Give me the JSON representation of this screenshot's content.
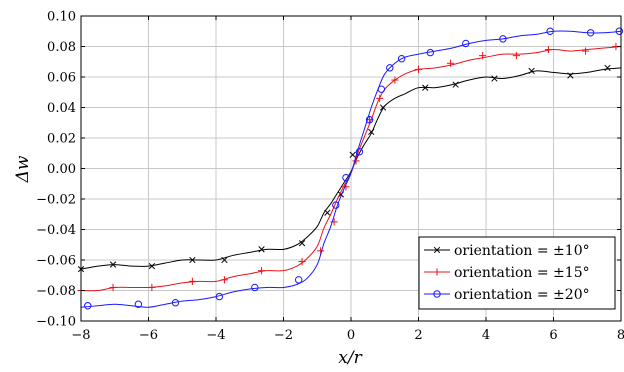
{
  "chart_data": {
    "type": "line",
    "title": "",
    "xlabel": "x/r",
    "ylabel": "Δw",
    "xlim": [
      -8,
      8
    ],
    "ylim": [
      -0.1,
      0.1
    ],
    "grid": true,
    "legend_position": "bottom-right",
    "x_ticks": [
      "−8",
      "−6",
      "−4",
      "−2",
      "0",
      "2",
      "4",
      "6",
      "8"
    ],
    "y_ticks": [
      "−0.10",
      "−0.08",
      "−0.06",
      "−0.04",
      "−0.02",
      "0.00",
      "0.02",
      "0.04",
      "0.06",
      "0.08",
      "0.10"
    ],
    "x_tick_values": [
      -8,
      -6,
      -4,
      -2,
      0,
      2,
      4,
      6,
      8
    ],
    "y_tick_values": [
      -0.1,
      -0.08,
      -0.06,
      -0.04,
      -0.02,
      0,
      0.02,
      0.04,
      0.06,
      0.08,
      0.1
    ],
    "series": [
      {
        "name": "orientation = ±10°",
        "color": "#000000",
        "marker": "cross",
        "line_x": [
          -8,
          -7.5,
          -7,
          -6.5,
          -6,
          -5.5,
          -5,
          -4.5,
          -4,
          -3.5,
          -3,
          -2.5,
          -2,
          -1.6,
          -1.3,
          -1.0,
          -0.8,
          -0.6,
          -0.4,
          -0.2,
          0,
          0.2,
          0.4,
          0.6,
          0.8,
          1.0,
          1.3,
          1.6,
          2.0,
          2.5,
          3.0,
          3.5,
          4.0,
          4.5,
          5.0,
          5.5,
          6.0,
          6.5,
          7.0,
          7.5,
          8.0
        ],
        "line_y": [
          -0.066,
          -0.064,
          -0.063,
          -0.064,
          -0.064,
          -0.062,
          -0.06,
          -0.06,
          -0.06,
          -0.057,
          -0.055,
          -0.053,
          -0.053,
          -0.05,
          -0.045,
          -0.038,
          -0.029,
          -0.023,
          -0.016,
          -0.009,
          -0.002,
          0.008,
          0.016,
          0.023,
          0.033,
          0.041,
          0.046,
          0.049,
          0.053,
          0.053,
          0.055,
          0.058,
          0.06,
          0.059,
          0.061,
          0.064,
          0.063,
          0.062,
          0.063,
          0.065,
          0.066
        ],
        "marker_x": [
          -8,
          -7.05,
          -5.9,
          -4.7,
          -3.75,
          -2.65,
          -1.45,
          -0.7,
          -0.3,
          0.05,
          0.6,
          0.95,
          2.2,
          3.1,
          4.25,
          5.35,
          6.5,
          7.6
        ],
        "marker_y": [
          -0.066,
          -0.063,
          -0.064,
          -0.06,
          -0.06,
          -0.053,
          -0.049,
          -0.029,
          -0.017,
          0.009,
          0.024,
          0.04,
          0.053,
          0.055,
          0.059,
          0.064,
          0.061,
          0.066
        ]
      },
      {
        "name": "orientation = ±15°",
        "color": "#e8141b",
        "marker": "plus",
        "line_x": [
          -8,
          -7.5,
          -7,
          -6.5,
          -6,
          -5.5,
          -5,
          -4.5,
          -4,
          -3.5,
          -3,
          -2.5,
          -2,
          -1.6,
          -1.3,
          -1.0,
          -0.8,
          -0.6,
          -0.4,
          -0.2,
          0,
          0.2,
          0.4,
          0.6,
          0.8,
          1.0,
          1.3,
          1.6,
          2.0,
          2.5,
          3.0,
          3.5,
          4.0,
          4.5,
          5.0,
          5.5,
          6.0,
          6.5,
          7.0,
          7.5,
          8.0
        ],
        "line_y": [
          -0.08,
          -0.08,
          -0.078,
          -0.078,
          -0.078,
          -0.077,
          -0.075,
          -0.074,
          -0.074,
          -0.071,
          -0.069,
          -0.067,
          -0.067,
          -0.064,
          -0.059,
          -0.051,
          -0.039,
          -0.03,
          -0.02,
          -0.011,
          -0.003,
          0.01,
          0.021,
          0.032,
          0.044,
          0.052,
          0.058,
          0.062,
          0.065,
          0.066,
          0.068,
          0.071,
          0.073,
          0.075,
          0.075,
          0.076,
          0.078,
          0.077,
          0.078,
          0.079,
          0.08
        ],
        "marker_x": [
          -8,
          -7.05,
          -5.9,
          -4.7,
          -3.75,
          -2.65,
          -1.45,
          -0.9,
          -0.5,
          -0.15,
          0.15,
          0.55,
          0.85,
          1.3,
          2.0,
          2.95,
          3.9,
          4.9,
          5.85,
          6.95,
          7.85
        ],
        "marker_y": [
          -0.08,
          -0.078,
          -0.078,
          -0.074,
          -0.073,
          -0.067,
          -0.061,
          -0.054,
          -0.035,
          -0.012,
          0.005,
          0.032,
          0.046,
          0.058,
          0.065,
          0.069,
          0.074,
          0.074,
          0.078,
          0.077,
          0.08
        ]
      },
      {
        "name": "orientation = ±20°",
        "color": "#1a1aff",
        "marker": "circle",
        "line_x": [
          -8,
          -7.5,
          -7,
          -6.5,
          -6,
          -5.5,
          -5,
          -4.5,
          -4,
          -3.5,
          -3,
          -2.5,
          -2,
          -1.6,
          -1.3,
          -1.0,
          -0.8,
          -0.6,
          -0.4,
          -0.2,
          0,
          0.2,
          0.4,
          0.6,
          0.8,
          1.0,
          1.3,
          1.6,
          2.0,
          2.5,
          3.0,
          3.5,
          4.0,
          4.5,
          5.0,
          5.5,
          6.0,
          6.5,
          7.0,
          7.5,
          8.0
        ],
        "line_y": [
          -0.091,
          -0.09,
          -0.089,
          -0.09,
          -0.091,
          -0.089,
          -0.087,
          -0.086,
          -0.084,
          -0.081,
          -0.079,
          -0.078,
          -0.078,
          -0.076,
          -0.072,
          -0.063,
          -0.049,
          -0.038,
          -0.024,
          -0.013,
          -0.003,
          0.012,
          0.026,
          0.04,
          0.052,
          0.062,
          0.069,
          0.073,
          0.075,
          0.077,
          0.079,
          0.082,
          0.084,
          0.085,
          0.087,
          0.088,
          0.09,
          0.09,
          0.089,
          0.089,
          0.09
        ],
        "marker_x": [
          -7.8,
          -6.3,
          -5.2,
          -3.9,
          -2.85,
          -1.55,
          -0.45,
          -0.15,
          0.25,
          0.55,
          0.9,
          1.15,
          1.5,
          2.35,
          3.4,
          4.5,
          5.9,
          7.1,
          7.95
        ],
        "marker_y": [
          -0.09,
          -0.089,
          -0.088,
          -0.084,
          -0.078,
          -0.073,
          -0.024,
          -0.006,
          0.011,
          0.032,
          0.052,
          0.066,
          0.072,
          0.076,
          0.082,
          0.085,
          0.09,
          0.089,
          0.09
        ]
      }
    ]
  }
}
